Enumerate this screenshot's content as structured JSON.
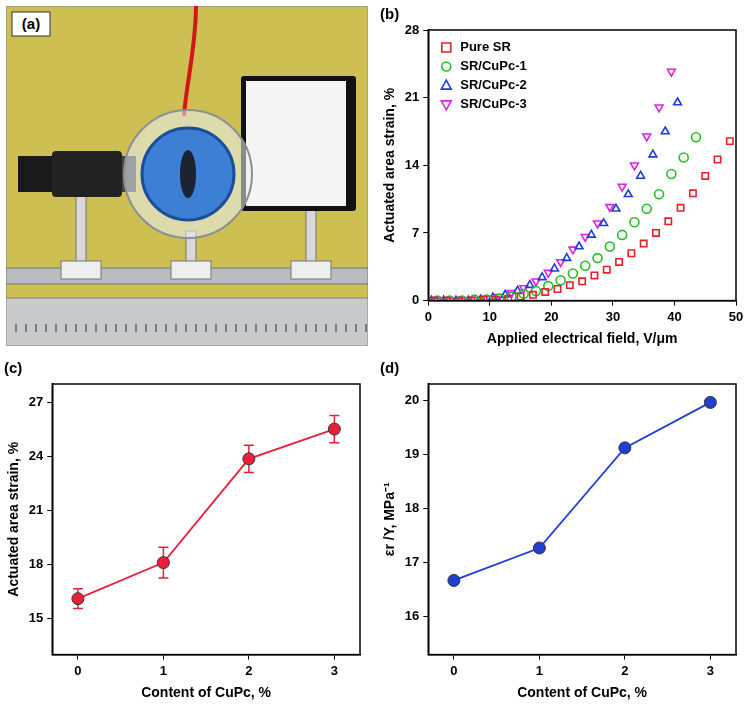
{
  "photo": {
    "label": "(a)"
  },
  "chart_data": [
    {
      "type": "scatter",
      "title": "(b)",
      "x_label": "Applied electrical field, V/μm",
      "y_label": "Actuated area strain, %",
      "xlim": [
        0,
        50
      ],
      "xticks": [
        0,
        10,
        20,
        30,
        40,
        50
      ],
      "ylim": [
        0,
        28
      ],
      "yticks": [
        0,
        7,
        14,
        21,
        28
      ],
      "grid": false,
      "legend": "upper left",
      "series": [
        {
          "name": "Pure SR",
          "color": "#e8202a",
          "marker": "square",
          "x": [
            1,
            3,
            5,
            7,
            9,
            11,
            13,
            15,
            17,
            19,
            21,
            23,
            25,
            27,
            29,
            31,
            33,
            35,
            37,
            39,
            41,
            43,
            45,
            47,
            49
          ],
          "values": [
            0,
            0,
            0,
            0,
            0.1,
            0.1,
            0.2,
            0.4,
            0.6,
            0.9,
            1.2,
            1.6,
            2.0,
            2.6,
            3.2,
            4.0,
            4.9,
            5.9,
            7.0,
            8.2,
            9.6,
            11.1,
            12.9,
            14.6,
            16.5
          ]
        },
        {
          "name": "SR/CuPc-1",
          "color": "#22c022",
          "marker": "circle",
          "x": [
            1.5,
            3.5,
            5.5,
            7.5,
            9.5,
            11.5,
            13.5,
            15.5,
            17.5,
            19.5,
            21.5,
            23.5,
            25.5,
            27.5,
            29.5,
            31.5,
            33.5,
            35.5,
            37.5,
            39.5,
            41.5,
            43.5
          ],
          "values": [
            0,
            0,
            0,
            0.1,
            0.1,
            0.2,
            0.4,
            0.7,
            1.0,
            1.5,
            2.1,
            2.8,
            3.6,
            4.4,
            5.6,
            6.8,
            8.1,
            9.5,
            11.0,
            13.1,
            14.8,
            16.9
          ]
        },
        {
          "name": "SR/CuPc-2",
          "color": "#1e3ce0",
          "marker": "triangle-up",
          "x": [
            0.5,
            2.5,
            4.5,
            6.5,
            8.5,
            10.5,
            12.5,
            14.5,
            16.5,
            18.5,
            20.5,
            22.5,
            24.5,
            26.5,
            28.5,
            30.5,
            32.5,
            34.5,
            36.5,
            38.5,
            40.5
          ],
          "values": [
            0,
            0,
            0,
            0,
            0.1,
            0.3,
            0.6,
            1.0,
            1.6,
            2.4,
            3.3,
            4.4,
            5.6,
            6.8,
            8.0,
            9.5,
            11.0,
            12.9,
            15.1,
            17.5,
            20.5
          ]
        },
        {
          "name": "SR/CuPc-3",
          "color": "#e020e0",
          "marker": "triangle-down",
          "x": [
            1.5,
            3.5,
            5.5,
            7.5,
            9.5,
            11.5,
            13.5,
            15.5,
            17.5,
            19.5,
            21.5,
            23.5,
            25.5,
            27.5,
            29.5,
            31.5,
            33.5,
            35.5,
            37.5,
            39.5
          ],
          "values": [
            0,
            0,
            0,
            0.1,
            0.2,
            0.4,
            0.8,
            1.3,
            2.0,
            2.9,
            4.0,
            5.3,
            6.6,
            8.0,
            9.7,
            11.8,
            14.0,
            17.0,
            20.0,
            23.7
          ]
        }
      ]
    },
    {
      "type": "line",
      "title": "(c)",
      "x_label": "Content of CuPc, %",
      "y_label": "Actuated area strain, %",
      "x": [
        0,
        1,
        2,
        3
      ],
      "values": [
        16.1,
        18.1,
        23.85,
        25.5
      ],
      "errors": [
        0.55,
        0.85,
        0.75,
        0.75
      ],
      "color": "#e8203c",
      "marker": "circle",
      "line_style": "solid",
      "xlim": [
        -0.3,
        3.3
      ],
      "xticks": [
        0,
        1,
        2,
        3
      ],
      "ylim": [
        13,
        28
      ],
      "yticks": [
        15,
        18,
        21,
        24,
        27
      ],
      "grid": false
    },
    {
      "type": "line",
      "title": "(d)",
      "x_label": "Content of CuPc, %",
      "y_label": "εr /Y, MPa⁻¹",
      "x": [
        0,
        1,
        2,
        3
      ],
      "values": [
        16.67,
        17.27,
        19.12,
        19.96
      ],
      "color": "#1f3fd0",
      "marker": "circle",
      "line_style": "solid",
      "xlim": [
        -0.3,
        3.3
      ],
      "xticks": [
        0,
        1,
        2,
        3
      ],
      "ylim": [
        15.3,
        20.3
      ],
      "yticks": [
        16,
        17,
        18,
        19,
        20
      ],
      "grid": false
    }
  ]
}
